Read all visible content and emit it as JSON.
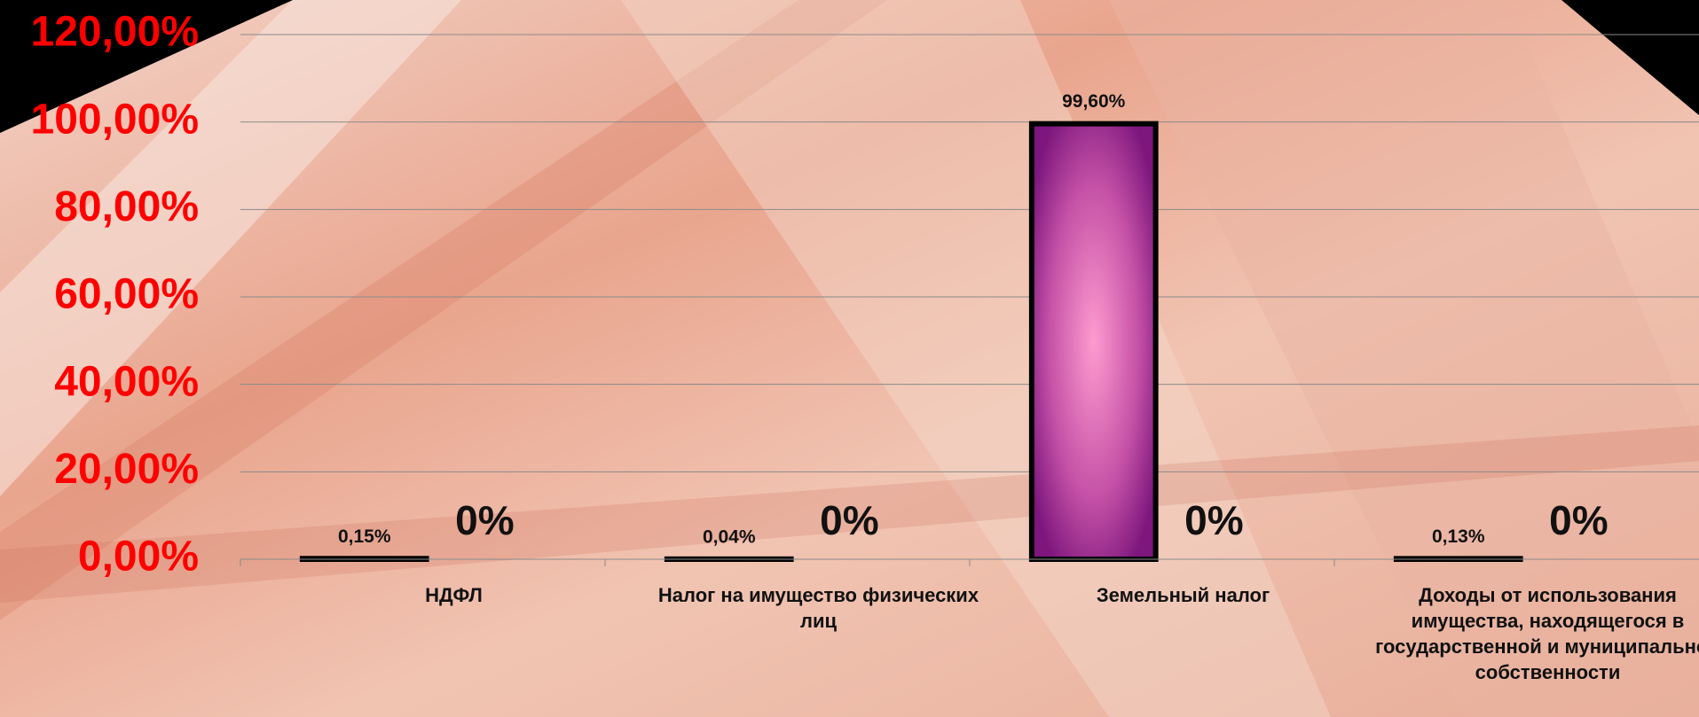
{
  "chart_data": {
    "type": "bar",
    "categories": [
      "НДФЛ",
      "Налог на имущество физических лиц",
      "Земельный налог",
      "Доходы от использования имущества, находящегося в государственной и муниципальной собственности"
    ],
    "series": [
      {
        "color": "#8b1f8b",
        "values": [
          0.15,
          0.04,
          99.6,
          0.13
        ],
        "value_labels": [
          "0,15%",
          "0,04%",
          "99,60%",
          "0,13%"
        ]
      },
      {
        "color": "#8b1f8b",
        "values": [
          0,
          0,
          0,
          0
        ],
        "value_labels": [
          "0%",
          "0%",
          "0%",
          "0%"
        ]
      }
    ],
    "ylim": [
      0,
      120
    ],
    "yticks": [
      {
        "value": 0,
        "label": "0,00%"
      },
      {
        "value": 20,
        "label": "20,00%"
      },
      {
        "value": 40,
        "label": "40,00%"
      },
      {
        "value": 60,
        "label": "60,00%"
      },
      {
        "value": 80,
        "label": "80,00%"
      },
      {
        "value": 100,
        "label": "100,00%"
      },
      {
        "value": 120,
        "label": "120,00%"
      }
    ],
    "grid": true
  }
}
